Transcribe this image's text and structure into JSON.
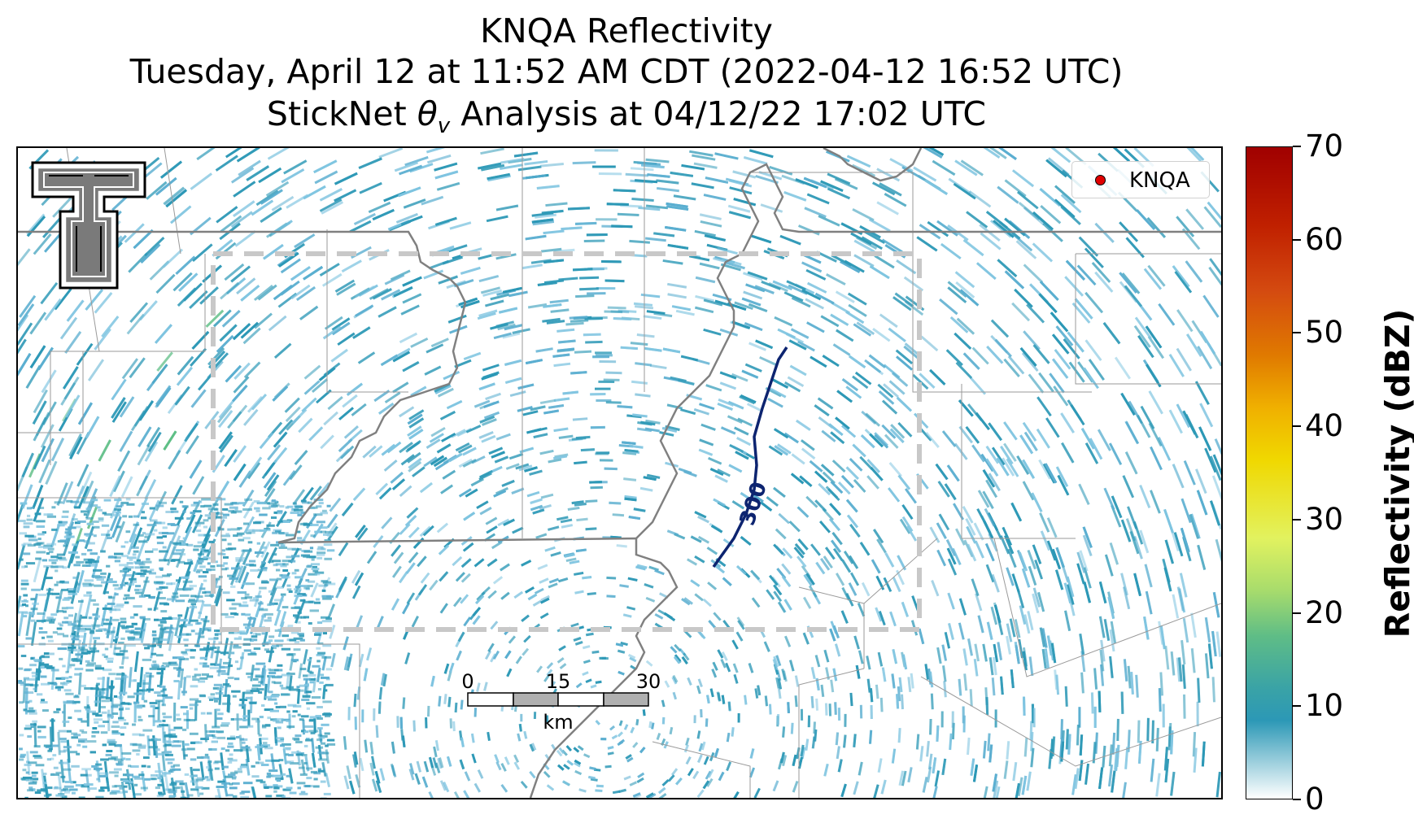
{
  "title": {
    "line1": "KNQA Reflectivity",
    "line2": "Tuesday, April 12 at 11:52 AM CDT (2022-04-12 16:52 UTC)",
    "line3_prefix": "StickNet ",
    "line3_theta": "θ",
    "line3_sub": "v",
    "line3_suffix": " Analysis at 04/12/22 17:02 UTC"
  },
  "legend": {
    "label": "KNQA",
    "marker_color": "#e00000"
  },
  "contour": {
    "label": "300",
    "color": "#0d2470"
  },
  "scalebar": {
    "ticks": [
      "0",
      "15",
      "30"
    ],
    "unit": "km"
  },
  "colorbar": {
    "label": "Reflectivity (dBZ)",
    "ticks": [
      "0",
      "10",
      "20",
      "30",
      "40",
      "50",
      "60",
      "70"
    ],
    "range": [
      0,
      70
    ]
  },
  "colors": {
    "radar_low": "#7ec4e0",
    "radar_mid": "#2c98b6",
    "radar_green": "#4fb87a",
    "analysis_box": "#c8c8c8",
    "state_border": "#808080",
    "county_border": "#9a9a9a"
  },
  "logo": {
    "name": "texas-tech-double-t-logo"
  }
}
